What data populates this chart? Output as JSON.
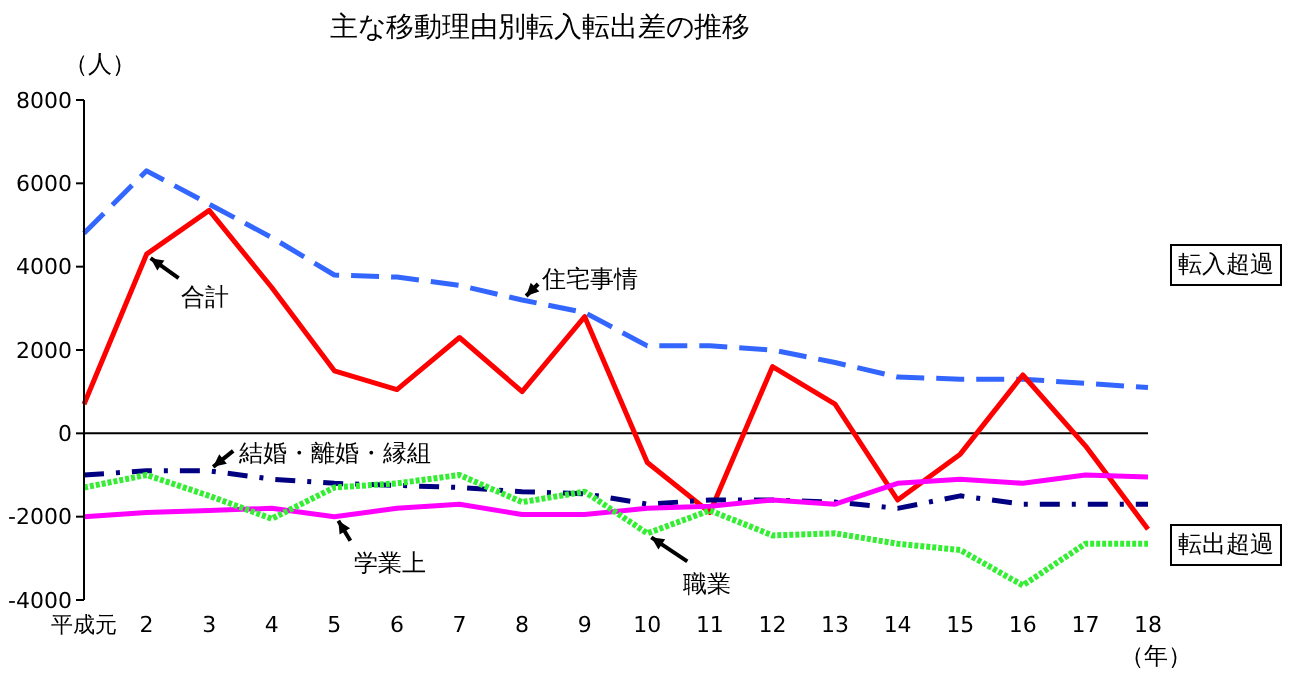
{
  "chart_data": {
    "type": "line",
    "title": "主な移動理由別転入転出差の推移",
    "ylabel": "（人）",
    "xlabel": "（年）",
    "categories": [
      "平成元",
      "2",
      "3",
      "4",
      "5",
      "6",
      "7",
      "8",
      "9",
      "10",
      "11",
      "12",
      "13",
      "14",
      "15",
      "16",
      "17",
      "18"
    ],
    "series": [
      {
        "name": "住宅事情",
        "color": "#3366ff",
        "line_style": "dashed",
        "values": [
          4800,
          6300,
          5500,
          4700,
          3800,
          3750,
          3550,
          3200,
          2900,
          2100,
          2100,
          2000,
          1700,
          1350,
          1300,
          1300,
          1200,
          1100
        ]
      },
      {
        "name": "合計",
        "color": "#ff0000",
        "line_style": "solid",
        "values": [
          700,
          4300,
          5350,
          3500,
          1500,
          1050,
          2300,
          1000,
          2800,
          -700,
          -1900,
          1600,
          700,
          -1600,
          -500,
          1400,
          -300,
          -2300
        ]
      },
      {
        "name": "結婚・離婚・縁組",
        "color": "#000080",
        "line_style": "dashed",
        "values": [
          -1000,
          -900,
          -900,
          -1100,
          -1200,
          -1250,
          -1300,
          -1400,
          -1450,
          -1700,
          -1600,
          -1600,
          -1650,
          -1800,
          -1500,
          -1700,
          -1700,
          -1700
        ]
      },
      {
        "name": "学業上",
        "color": "#ff00ff",
        "line_style": "solid",
        "values": [
          -2000,
          -1900,
          -1850,
          -1800,
          -2000,
          -1800,
          -1700,
          -1950,
          -1950,
          -1800,
          -1750,
          -1600,
          -1700,
          -1200,
          -1100,
          -1200,
          -1000,
          -1050
        ]
      },
      {
        "name": "職業",
        "color": "#33ee33",
        "line_style": "dotted",
        "values": [
          -1300,
          -1000,
          -1500,
          -2050,
          -1300,
          -1200,
          -1000,
          -1650,
          -1400,
          -2400,
          -1850,
          -2450,
          -2400,
          -2650,
          -2800,
          -3650,
          -2650,
          -2650
        ]
      }
    ],
    "ylim": [
      -4000,
      8000
    ],
    "yticks": [
      -4000,
      -2000,
      0,
      2000,
      4000,
      6000,
      8000
    ],
    "ref_lines": [
      {
        "axis": "y",
        "value": 0,
        "color": "#000000"
      }
    ],
    "annotations": [
      "転入超過",
      "転出超過"
    ],
    "grid": false,
    "legend": false,
    "marker": "none"
  }
}
